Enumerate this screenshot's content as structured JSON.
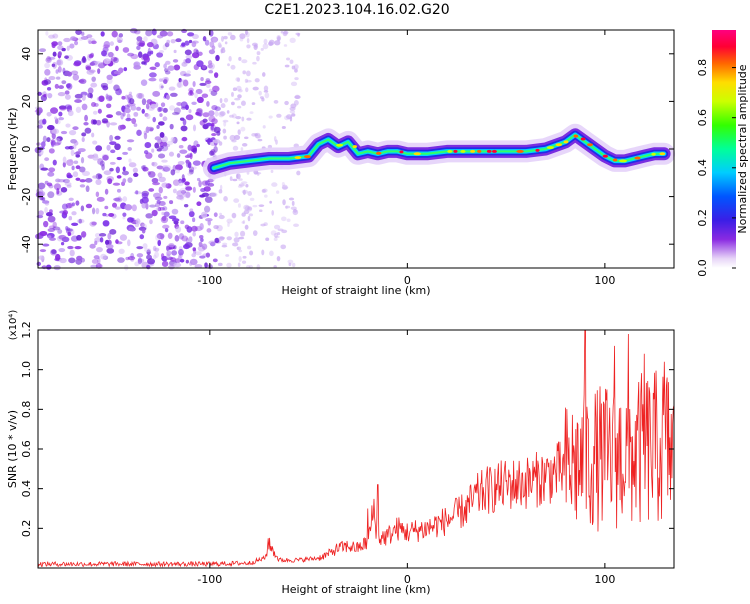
{
  "figure": {
    "title": "C2E1.2023.104.16.02.G20"
  },
  "chart_data": [
    {
      "type": "heatmap",
      "xlabel": "Height of straight line (km)",
      "ylabel": "Frequency (Hz)",
      "xlim": [
        -187,
        135
      ],
      "ylim": [
        -50,
        50
      ],
      "xticks": [
        -100,
        0,
        100
      ],
      "yticks": [
        -40,
        -20,
        0,
        20,
        40
      ],
      "grid": false,
      "colorbar": {
        "label": "Normalized spectral amplitude",
        "range": [
          0.0,
          0.95
        ],
        "ticks": [
          0.0,
          0.2,
          0.4,
          0.6,
          0.8
        ],
        "colormap": "rainbow (white-purple-blue-cyan-green-yellow-red-magenta)"
      },
      "ridge_line": {
        "x": [
          -98,
          -90,
          -80,
          -70,
          -60,
          -50,
          -45,
          -40,
          -35,
          -30,
          -25,
          -20,
          -15,
          -10,
          -5,
          0,
          10,
          20,
          30,
          40,
          50,
          60,
          70,
          80,
          85,
          90,
          95,
          100,
          105,
          110,
          115,
          120,
          125,
          130
        ],
        "y": [
          -8,
          -6,
          -5,
          -4,
          -4,
          -3,
          2,
          4,
          1,
          3,
          -2,
          -1,
          -2,
          -1,
          -1,
          -2,
          -2,
          -1,
          -1,
          -1,
          -1,
          -1,
          0,
          3,
          6,
          3,
          0,
          -3,
          -5,
          -5,
          -4,
          -3,
          -2,
          -2
        ]
      },
      "noise_regions": {
        "dense": [
          -187,
          -95
        ],
        "sparse": [
          -95,
          -55
        ]
      }
    },
    {
      "type": "line",
      "xlabel": "Height of straight line (km)",
      "ylabel": "SNR (10 * v/v)",
      "yscale_label": "(x10⁴)",
      "xlim": [
        -187,
        135
      ],
      "ylim": [
        0,
        1.2
      ],
      "xticks": [
        -100,
        0,
        100
      ],
      "yticks": [
        0.2,
        0.4,
        0.6,
        0.8,
        1.0,
        1.2
      ],
      "grid": false,
      "series": [
        {
          "color": "#ee2222",
          "x": [
            -187,
            -160,
            -130,
            -100,
            -80,
            -72,
            -70,
            -65,
            -55,
            -45,
            -40,
            -35,
            -30,
            -25,
            -20,
            -17,
            -15,
            -10,
            -5,
            0,
            5,
            10,
            15,
            20,
            25,
            30,
            35,
            40,
            50,
            60,
            70,
            75,
            80,
            85,
            90,
            95,
            100,
            105,
            110,
            115,
            120,
            125,
            130,
            135
          ],
          "y": [
            0.02,
            0.02,
            0.02,
            0.02,
            0.025,
            0.05,
            0.12,
            0.04,
            0.04,
            0.05,
            0.07,
            0.1,
            0.11,
            0.1,
            0.13,
            0.3,
            0.15,
            0.16,
            0.2,
            0.18,
            0.19,
            0.2,
            0.22,
            0.24,
            0.27,
            0.3,
            0.36,
            0.39,
            0.42,
            0.43,
            0.46,
            0.48,
            0.5,
            0.52,
            0.53,
            0.55,
            0.56,
            0.55,
            0.58,
            0.57,
            0.6,
            0.6,
            0.62,
            0.6
          ]
        }
      ],
      "spikes": [
        {
          "x": -70.5,
          "y": 0.15
        },
        {
          "x": -20,
          "y": 0.3
        },
        {
          "x": -15,
          "y": 0.42
        },
        {
          "x": 90,
          "y": 1.2
        },
        {
          "x": 105,
          "y": 1.12
        },
        {
          "x": 112,
          "y": 1.18
        },
        {
          "x": 120,
          "y": 1.08
        },
        {
          "x": 130,
          "y": 1.04
        }
      ]
    }
  ]
}
